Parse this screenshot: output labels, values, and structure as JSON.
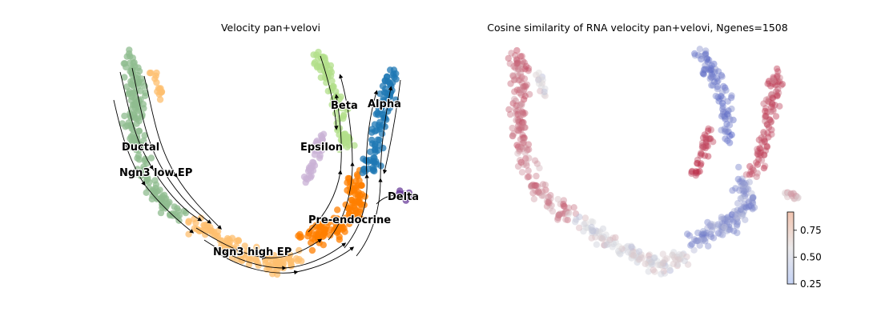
{
  "chart_data": [
    {
      "type": "scatter",
      "subtype": "umap-velocity-stream",
      "title": "Velocity pan+velovi",
      "xlabel": "",
      "ylabel": "",
      "axes_visible": false,
      "grid": false,
      "legend": "on-data",
      "clusters": [
        {
          "name": "Ductal",
          "color": "#8fbc8f"
        },
        {
          "name": "Ngn3 low EP",
          "color": "#8fbc8f"
        },
        {
          "name": "Ngn3 high EP",
          "color": "#fdbf6f"
        },
        {
          "name": "Pre-endocrine",
          "color": "#ff7f00"
        },
        {
          "name": "Beta",
          "color": "#b2df8a"
        },
        {
          "name": "Alpha",
          "color": "#1f78b4"
        },
        {
          "name": "Delta",
          "color": "#6a3d9a"
        },
        {
          "name": "Epsilon",
          "color": "#cab2d6"
        }
      ],
      "streamlines": true
    },
    {
      "type": "scatter",
      "subtype": "umap-continuous",
      "title": "Cosine similarity of RNA velocity pan+velovi, Ngenes=1508",
      "xlabel": "",
      "ylabel": "",
      "axes_visible": false,
      "grid": false,
      "colormap": "coolwarm",
      "colorbar": {
        "min": 0.25,
        "max": 0.92,
        "ticks": [
          0.25,
          0.5,
          0.75
        ],
        "tick_labels": [
          "0.25",
          "0.50",
          "0.75"
        ]
      }
    }
  ]
}
